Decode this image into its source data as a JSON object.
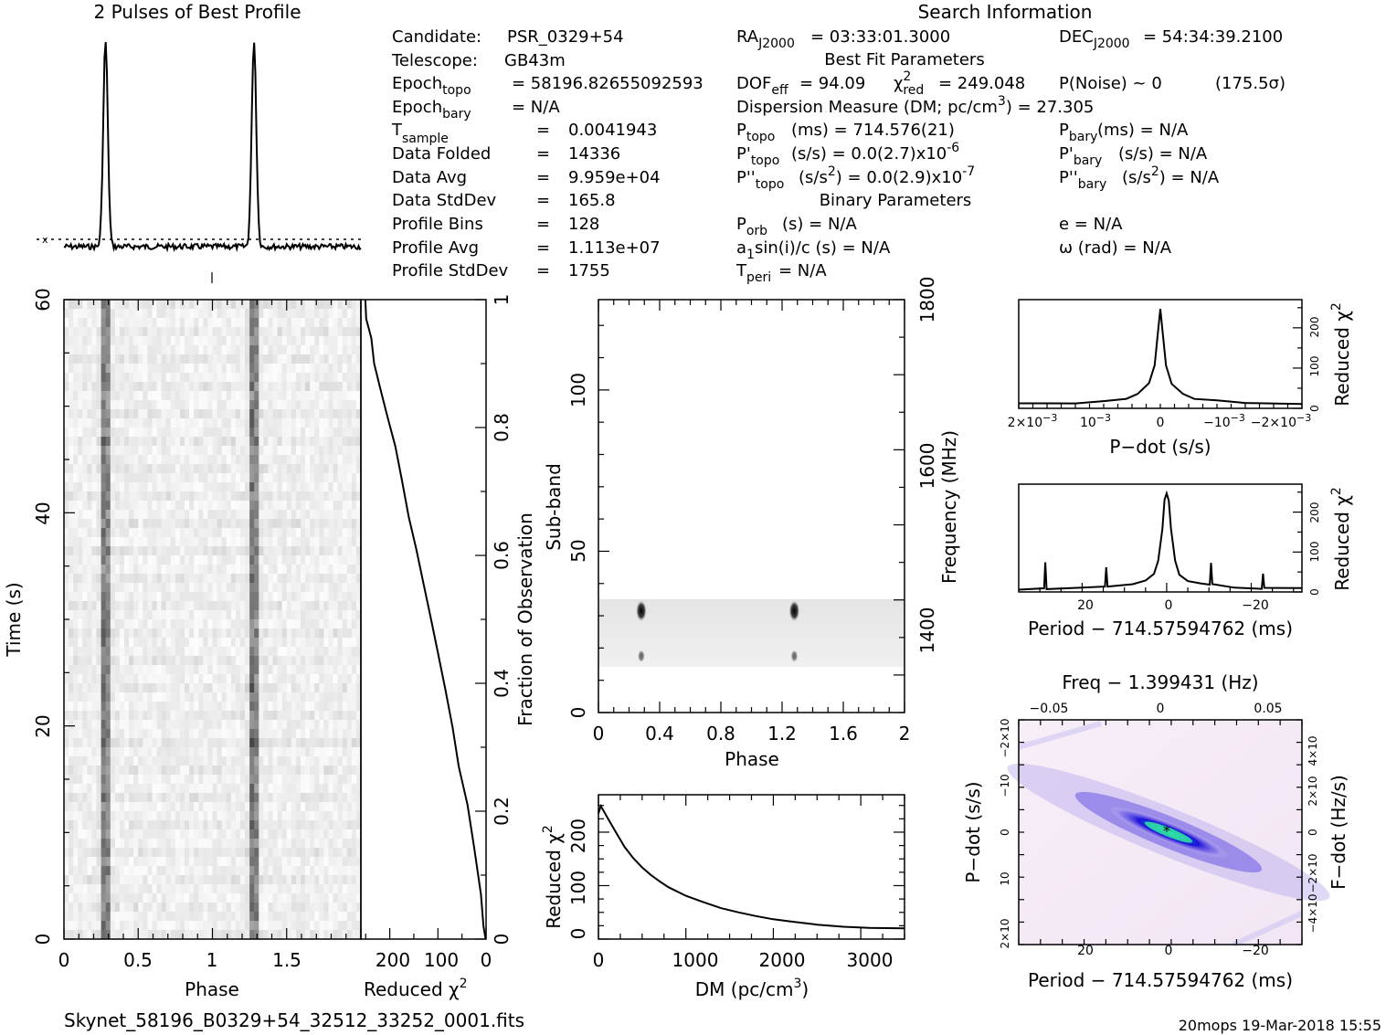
{
  "profile": {
    "title": "2 Pulses of Best Profile"
  },
  "header": {
    "search_title": "Search Information",
    "candidate_label": "Candidate:",
    "candidate_value": "PSR_0329+54",
    "telescope_label": "Telescope:",
    "telescope_value": "GB43m",
    "epoch_topo_label": "Epoch",
    "epoch_topo_sub": "topo",
    "epoch_topo_value": "= 58196.82655092593",
    "epoch_bary_label": "Epoch",
    "epoch_bary_sub": "bary",
    "epoch_bary_value": "= N/A",
    "tsample_label": "T",
    "tsample_sub": "sample",
    "tsample_value": "0.0041943",
    "data_folded_label": "Data Folded",
    "data_folded_value": "14336",
    "data_avg_label": "Data Avg",
    "data_avg_value": "9.959e+04",
    "data_stddev_label": "Data StdDev",
    "data_stddev_value": "165.8",
    "profile_bins_label": "Profile Bins",
    "profile_bins_value": "128",
    "profile_avg_label": "Profile Avg",
    "profile_avg_value": "1.113e+07",
    "profile_stddev_label": "Profile StdDev",
    "profile_stddev_value": "1755",
    "eq": "=",
    "ra_label": "RA",
    "ra_sub": "J2000",
    "ra_value": "= 03:33:01.3000",
    "dec_label": "DEC",
    "dec_sub": "J2000",
    "dec_value": "= 54:34:39.2100",
    "best_fit_title": "Best Fit Parameters",
    "dof_label": "DOF",
    "dof_sub": "eff",
    "dof_value": "= 94.09",
    "chi_sym": "χ",
    "chi_sup": "2",
    "chi_sub": "red",
    "chi_value": "= 249.048",
    "pnoise": "P(Noise) ~ 0",
    "sigma": "(175.5σ)",
    "dm_text": "Dispersion Measure (DM; pc/cm",
    "dm_sup": "3",
    "dm_value": ") = 27.305",
    "ptopo_label": "P",
    "ptopo_sub": "topo",
    "ptopo_value": "(ms) =  714.576(21)",
    "pbary_label": "P",
    "pbary_sub": "bary",
    "pbary_value": "(ms) = N/A",
    "pdtopo_label": "P'",
    "pdtopo_sub": "topo",
    "pdtopo_value": "(s/s) = 0.0(2.7)x10",
    "pdtopo_exp": "-6",
    "pdbary_label": "P'",
    "pdbary_sub": "bary",
    "pdbary_value": "(s/s) = N/A",
    "pddtopo_label": "P''",
    "pddtopo_sub": "topo",
    "pddtopo_value_a": "(s/s",
    "pddtopo_value_sup": "2",
    "pddtopo_value_b": ") = 0.0(2.9)x10",
    "pddtopo_exp": "-7",
    "pddbary_label": "P''",
    "pddbary_sub": "bary",
    "pddbary_value_a": "(s/s",
    "pddbary_value_sup": "2",
    "pddbary_value_b": ") = N/A",
    "binary_title": "Binary Parameters",
    "porb_label": "P",
    "porb_sub": "orb",
    "porb_value": "(s) = N/A",
    "e_text": "e = N/A",
    "a1_text_a": "a",
    "a1_sub": "1",
    "a1_text_b": "sin(i)/c (s) = N/A",
    "omega_text": "ω (rad) = N/A",
    "tperi_label": "T",
    "tperi_sub": "peri",
    "tperi_value": "= N/A"
  },
  "footer": {
    "filename": "Skynet_58196_B0329+54_32512_33252_0001.fits",
    "stamp": "20mops 19-Mar-2018 15:55"
  },
  "colors": {
    "ink": "#000000",
    "greyscale_min": "#ffffff",
    "greyscale_max": "#000000",
    "ppdot_low": "#f7eef8",
    "ppdot_mid": "#1a10d8",
    "ppdot_high": "#30e0a0"
  },
  "chart_data": [
    {
      "name": "profile",
      "type": "line",
      "title": "2 Pulses of Best Profile",
      "pulse_peak_phases": [
        0.28,
        1.28
      ],
      "baseline_marker": "x",
      "grid": false
    },
    {
      "name": "time-phase",
      "type": "heatmap",
      "xlabel": "Phase",
      "ylabel": "Time (s)",
      "xlim": [
        0,
        2
      ],
      "ylim": [
        0,
        60
      ],
      "xticks": [
        "0",
        "0.5",
        "1",
        "1.5"
      ],
      "yticks": [
        "0",
        "20",
        "40",
        "60"
      ],
      "pulse_phases": [
        0.28,
        1.28
      ]
    },
    {
      "name": "reduced-chi2-vs-time",
      "type": "line",
      "xlabel": "Reduced χ",
      "xlabel_sup": "2",
      "ylabel": "Fraction of Observation",
      "xticks": [
        "200",
        "100",
        "0"
      ],
      "yticks": [
        "0",
        "0.2",
        "0.4",
        "0.6",
        "0.8",
        "1"
      ],
      "x": [
        250,
        248,
        240,
        232,
        220,
        205,
        190,
        175,
        160,
        145,
        130,
        115,
        100,
        85,
        70,
        55,
        40,
        25,
        12,
        4,
        0
      ],
      "y": [
        1.0,
        0.97,
        0.94,
        0.9,
        0.86,
        0.82,
        0.77,
        0.72,
        0.66,
        0.61,
        0.55,
        0.5,
        0.45,
        0.39,
        0.33,
        0.27,
        0.21,
        0.14,
        0.07,
        0.02,
        0.0
      ]
    },
    {
      "name": "subband-phase",
      "type": "heatmap",
      "xlabel": "Phase",
      "ylabel": "Sub-band",
      "y2label": "Frequency (MHz)",
      "xlim": [
        0,
        2
      ],
      "ylim": [
        0,
        128
      ],
      "xticks": [
        "0",
        "0.4",
        "0.8",
        "1.2",
        "1.6",
        "2"
      ],
      "yticks": [
        "0",
        "50",
        "100"
      ],
      "y2ticks": [
        "1400",
        "1600",
        "1800"
      ],
      "band_subbands": [
        14,
        35
      ],
      "pulse_phases": [
        0.28,
        1.28
      ]
    },
    {
      "name": "dm-curve",
      "type": "line",
      "xlabel": "DM (pc/cm",
      "xlabel_sup": "3",
      "xlabel_end": ")",
      "ylabel": "Reduced χ",
      "ylabel_sup": "2",
      "xlim": [
        0,
        3500
      ],
      "ylim": [
        0,
        270
      ],
      "xticks": [
        "0",
        "1000",
        "2000",
        "3000"
      ],
      "yticks": [
        "0",
        "100",
        "200"
      ],
      "x": [
        0,
        27,
        100,
        200,
        300,
        400,
        500,
        600,
        700,
        800,
        1000,
        1200,
        1400,
        1600,
        1800,
        2000,
        2200,
        2500,
        2800,
        3100,
        3500
      ],
      "y": [
        235,
        249,
        228,
        200,
        172,
        151,
        134,
        120,
        108,
        97,
        81,
        69,
        58,
        50,
        43,
        37,
        33,
        27,
        23,
        21,
        20
      ]
    },
    {
      "name": "pdot-curve",
      "type": "line",
      "xlabel": "P−dot (s/s)",
      "ylabel": "Reduced χ",
      "ylabel_sup": "2",
      "xlim": [
        0.0025,
        -0.0025
      ],
      "ylim": [
        0,
        270
      ],
      "xticks": [
        "2×10",
        "10",
        "0",
        "−10",
        "−2×10"
      ],
      "xticks_exp": "−3",
      "yticks": [
        "0",
        "100",
        "200"
      ],
      "x": [
        0.0025,
        0.0015,
        0.001,
        0.0006,
        0.0004,
        0.0002,
        0.0001,
        4e-05,
        0,
        -4e-05,
        -0.0001,
        -0.0002,
        -0.0004,
        -0.0006,
        -0.001,
        -0.0015,
        -0.0025
      ],
      "y": [
        12,
        14,
        18,
        25,
        36,
        62,
        105,
        190,
        249,
        190,
        105,
        62,
        36,
        25,
        18,
        14,
        12
      ]
    },
    {
      "name": "period-curve",
      "type": "line",
      "xlabel": "Period − 714.57594762 (ms)",
      "ylabel": "Reduced χ",
      "ylabel_sup": "2",
      "xlim": [
        35,
        -32
      ],
      "ylim": [
        0,
        270
      ],
      "xticks": [
        "20",
        "0",
        "−20"
      ],
      "yticks": [
        "0",
        "100",
        "200"
      ],
      "x": [
        35,
        29,
        28.7,
        28.4,
        20,
        14.6,
        14.3,
        14.0,
        8,
        5,
        3,
        2,
        1,
        0.5,
        0,
        -0.5,
        -1,
        -2,
        -3,
        -5,
        -8,
        -10.2,
        -10.5,
        -10.8,
        -16,
        -22.5,
        -22.8,
        -23.1,
        -32
      ],
      "y": [
        6,
        8,
        75,
        8,
        10,
        14,
        60,
        14,
        18,
        28,
        45,
        80,
        160,
        230,
        249,
        230,
        160,
        80,
        45,
        28,
        20,
        18,
        75,
        18,
        12,
        10,
        45,
        10,
        8
      ]
    },
    {
      "name": "period-pdot-plane",
      "type": "heatmap",
      "xlabel": "Period − 714.57594762 (ms)",
      "ylabel": "P−dot (s/s)",
      "x2label": "Freq − 1.399431 (Hz)",
      "y2label": "F−dot (Hz/s)",
      "xlim": [
        35,
        -32
      ],
      "ylim": [
        -0.0025,
        0.0025
      ],
      "xticks": [
        "20",
        "0",
        "−20"
      ],
      "x2ticks": [
        "−0.05",
        "0",
        "0.05"
      ],
      "yticks": [
        "2×10",
        "10",
        "0",
        "−10",
        "−2×10"
      ],
      "y2ticks": [
        "−4×10",
        "−2×10",
        "0",
        "2×10",
        "4×10"
      ],
      "best": [
        0,
        0
      ]
    }
  ]
}
